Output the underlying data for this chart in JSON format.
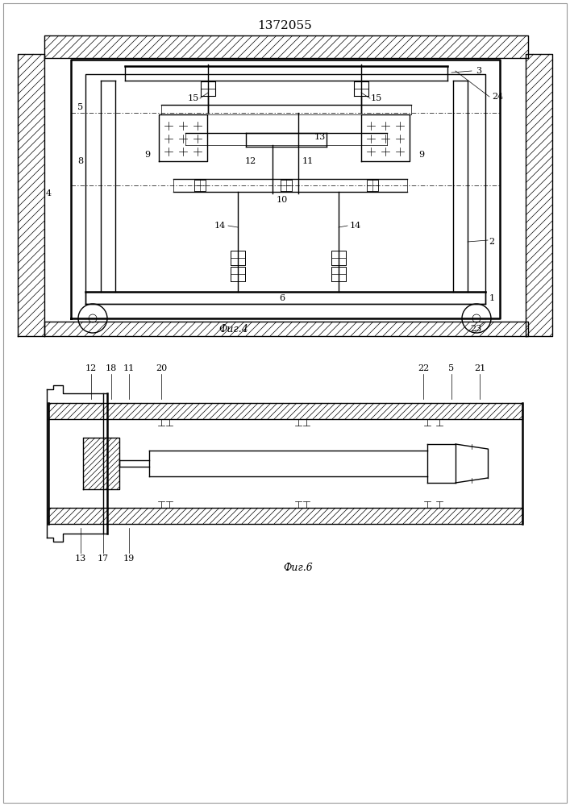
{
  "title": "1372055",
  "fig4_label": "Фиг.4",
  "fig6_label": "Фиг.6",
  "bg_color": "#ffffff",
  "lc": "#000000",
  "lw": 1.0,
  "lw_t": 0.5,
  "lw_th": 1.8
}
